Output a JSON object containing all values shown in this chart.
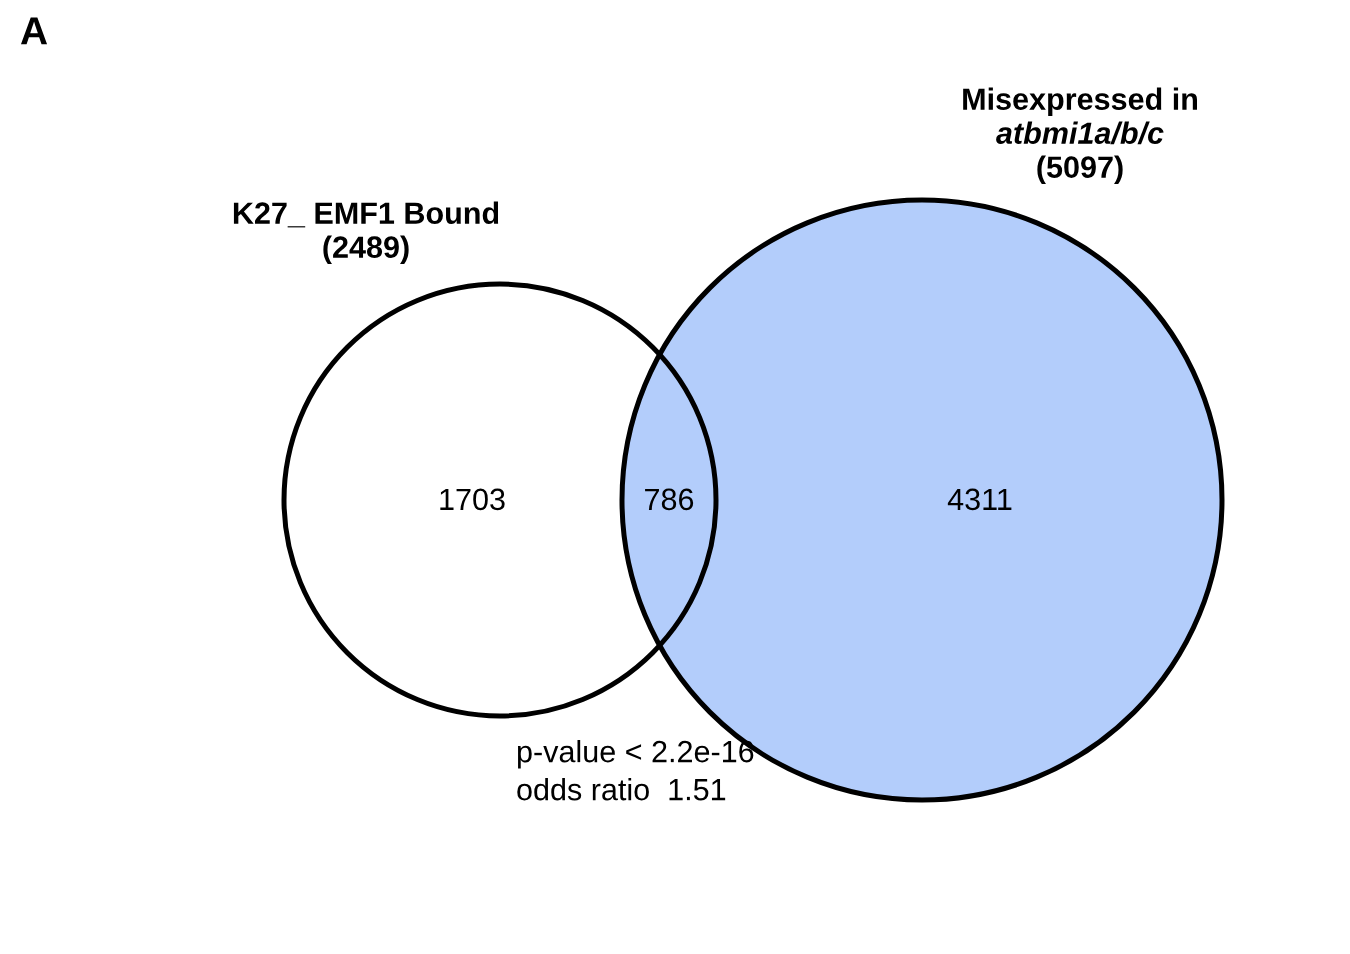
{
  "chart_data": {
    "type": "other",
    "title": "A",
    "categories": [
      null,
      null,
      null
    ],
    "values": [
      1703,
      786,
      4311
    ],
    "colors": [
      "#ffffff",
      "#b3cdfb",
      "#b3cdfb"
    ],
    "data_labels": true,
    "annotations": [
      "K27_ EMF1 Bound\n(2489)",
      "Misexpressed in atbmi1a/b/c\n(5097)",
      "p-value < 2.2e-16",
      "odds ratio  1.51"
    ]
  }
}
